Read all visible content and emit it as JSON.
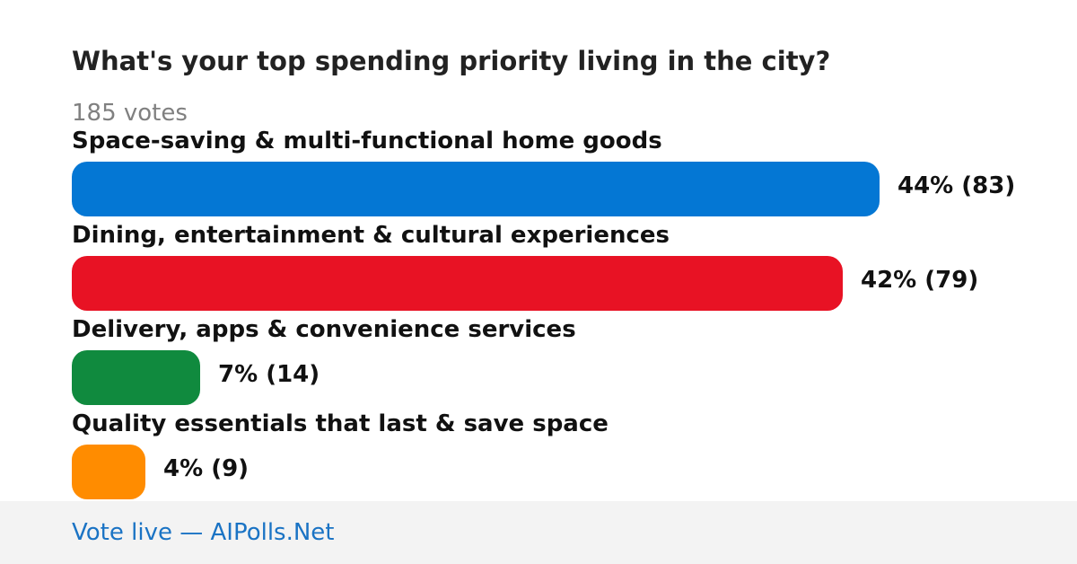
{
  "poll": {
    "title": "What's your top spending priority living in the city?",
    "votes_label": "185 votes"
  },
  "chart_data": {
    "type": "bar",
    "orientation": "horizontal",
    "title": "What's your top spending priority living in the city?",
    "total_votes": 185,
    "categories": [
      "Space-saving & multi-functional home goods",
      "Dining, entertainment & cultural experiences",
      "Delivery, apps & convenience services",
      "Quality essentials that last & save space"
    ],
    "values": [
      44,
      42,
      7,
      4
    ],
    "counts": [
      83,
      79,
      14,
      9
    ],
    "value_labels": [
      "44% (83)",
      "42% (79)",
      "7% (14)",
      "4% (9)"
    ],
    "colors": [
      "#0477d4",
      "#e81224",
      "#108a3e",
      "#ff8c00"
    ],
    "xlim": [
      0,
      100
    ]
  },
  "footer": {
    "link_text": "Vote live — AIPolls.Net",
    "link_color": "#1a73c4"
  }
}
